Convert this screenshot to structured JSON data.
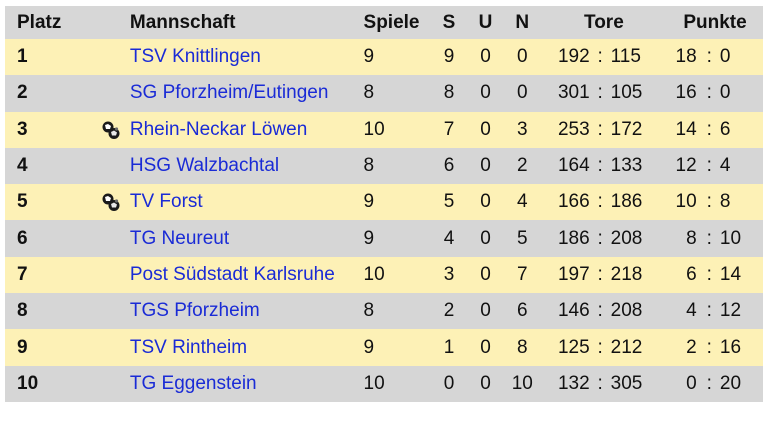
{
  "headers": {
    "platz": "Platz",
    "mannschaft": "Mannschaft",
    "spiele": "Spiele",
    "s": "S",
    "u": "U",
    "n": "N",
    "tore": "Tore",
    "punkte": "Punkte"
  },
  "separator": ":",
  "rows": [
    {
      "platz": "1",
      "icon": "",
      "team": "TSV Knittlingen",
      "spiele": "9",
      "s": "9",
      "u": "0",
      "n": "0",
      "tore_plus": "192",
      "tore_minus": "115",
      "punkte_plus": "18",
      "punkte_minus": "0"
    },
    {
      "platz": "2",
      "icon": "",
      "team": "SG Pforzheim/Eutingen",
      "spiele": "8",
      "s": "8",
      "u": "0",
      "n": "0",
      "tore_plus": "301",
      "tore_minus": "105",
      "punkte_plus": "16",
      "punkte_minus": "0"
    },
    {
      "platz": "3",
      "icon": "ball-icon",
      "team": "Rhein-Neckar Löwen",
      "spiele": "10",
      "s": "7",
      "u": "0",
      "n": "3",
      "tore_plus": "253",
      "tore_minus": "172",
      "punkte_plus": "14",
      "punkte_minus": "6"
    },
    {
      "platz": "4",
      "icon": "",
      "team": "HSG Walzbachtal",
      "spiele": "8",
      "s": "6",
      "u": "0",
      "n": "2",
      "tore_plus": "164",
      "tore_minus": "133",
      "punkte_plus": "12",
      "punkte_minus": "4"
    },
    {
      "platz": "5",
      "icon": "ball-icon",
      "team": "TV Forst",
      "spiele": "9",
      "s": "5",
      "u": "0",
      "n": "4",
      "tore_plus": "166",
      "tore_minus": "186",
      "punkte_plus": "10",
      "punkte_minus": "8"
    },
    {
      "platz": "6",
      "icon": "",
      "team": "TG Neureut",
      "spiele": "9",
      "s": "4",
      "u": "0",
      "n": "5",
      "tore_plus": "186",
      "tore_minus": "208",
      "punkte_plus": "8",
      "punkte_minus": "10"
    },
    {
      "platz": "7",
      "icon": "",
      "team": "Post Südstadt Karlsruhe",
      "spiele": "10",
      "s": "3",
      "u": "0",
      "n": "7",
      "tore_plus": "197",
      "tore_minus": "218",
      "punkte_plus": "6",
      "punkte_minus": "14"
    },
    {
      "platz": "8",
      "icon": "",
      "team": "TGS Pforzheim",
      "spiele": "8",
      "s": "2",
      "u": "0",
      "n": "6",
      "tore_plus": "146",
      "tore_minus": "208",
      "punkte_plus": "4",
      "punkte_minus": "12"
    },
    {
      "platz": "9",
      "icon": "",
      "team": "TSV Rintheim",
      "spiele": "9",
      "s": "1",
      "u": "0",
      "n": "8",
      "tore_plus": "125",
      "tore_minus": "212",
      "punkte_plus": "2",
      "punkte_minus": "16"
    },
    {
      "platz": "10",
      "icon": "",
      "team": "TG Eggenstein",
      "spiele": "10",
      "s": "0",
      "u": "0",
      "n": "10",
      "tore_plus": "132",
      "tore_minus": "305",
      "punkte_plus": "0",
      "punkte_minus": "20"
    }
  ],
  "colors": {
    "header_bg": "#d7d7d7",
    "row_odd_bg": "#fdf1b6",
    "row_even_bg": "#d6d6d6",
    "team_link": "#1a2bd6"
  }
}
